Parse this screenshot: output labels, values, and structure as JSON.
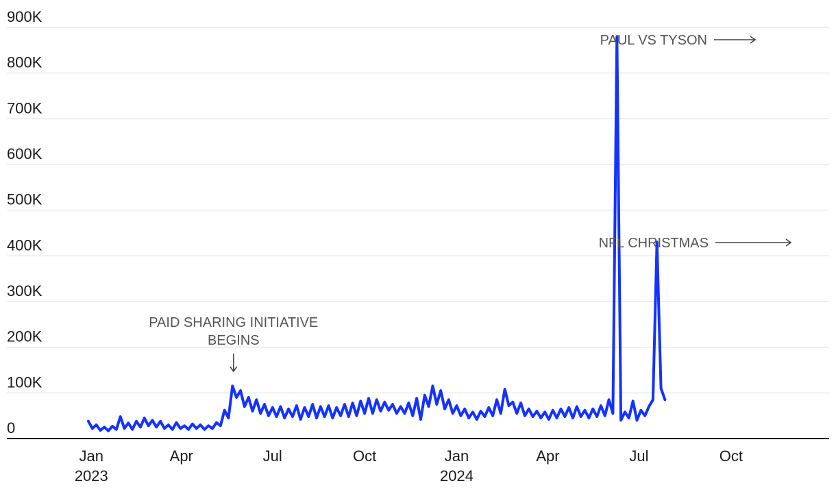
{
  "chart_data": {
    "type": "line",
    "title": "",
    "xlabel": "",
    "ylabel": "",
    "ylim": [
      0,
      900000
    ],
    "xlim": [
      "2022-12-01",
      "2025-01-07"
    ],
    "grid": "horizontal",
    "colors": {
      "line": "#1432ff",
      "grid": "#dcdcdc",
      "axis": "#111111",
      "annotation": "#555555"
    },
    "y_ticks": [
      {
        "value": 0,
        "label": "0"
      },
      {
        "value": 100000,
        "label": "100K"
      },
      {
        "value": 200000,
        "label": "200K"
      },
      {
        "value": 300000,
        "label": "300K"
      },
      {
        "value": 400000,
        "label": "400K"
      },
      {
        "value": 500000,
        "label": "500K"
      },
      {
        "value": 600000,
        "label": "600K"
      },
      {
        "value": 700000,
        "label": "700K"
      },
      {
        "value": 800000,
        "label": "800K"
      },
      {
        "value": 900000,
        "label": "900K"
      }
    ],
    "x_ticks": [
      {
        "date": "2023-01-01",
        "label": "Jan",
        "sublabel": "2023"
      },
      {
        "date": "2023-04-01",
        "label": "Apr",
        "sublabel": ""
      },
      {
        "date": "2023-07-01",
        "label": "Jul",
        "sublabel": ""
      },
      {
        "date": "2023-10-01",
        "label": "Oct",
        "sublabel": ""
      },
      {
        "date": "2024-01-01",
        "label": "Jan",
        "sublabel": "2024"
      },
      {
        "date": "2024-04-01",
        "label": "Apr",
        "sublabel": ""
      },
      {
        "date": "2024-07-01",
        "label": "Jul",
        "sublabel": ""
      },
      {
        "date": "2024-10-01",
        "label": "Oct",
        "sublabel": ""
      }
    ],
    "annotations": [
      {
        "text": "PAID SHARING INITIATIVE",
        "text2": "BEGINS",
        "date": "2023-05-23",
        "arrow": "down"
      },
      {
        "text": "PAUL VS TYSON",
        "date": "2024-11-15",
        "value": 880000,
        "arrow": "right"
      },
      {
        "text": "NFL CHRISTMAS",
        "date": "2024-12-25",
        "value": 430000,
        "arrow": "right"
      }
    ],
    "series": [
      {
        "values_start": "2022-12-29",
        "values_step_days": 4,
        "values": [
          38000,
          22000,
          30000,
          18000,
          25000,
          17000,
          27000,
          20000,
          48000,
          22000,
          34000,
          20000,
          38000,
          25000,
          45000,
          28000,
          40000,
          25000,
          38000,
          22000,
          30000,
          20000,
          35000,
          22000,
          28000,
          20000,
          32000,
          22000,
          30000,
          20000,
          28000,
          22000,
          35000,
          28000,
          62000,
          45000,
          115000,
          90000,
          105000,
          70000,
          90000,
          60000,
          85000,
          55000,
          75000,
          50000,
          68000,
          48000,
          70000,
          45000,
          65000,
          48000,
          72000,
          42000,
          68000,
          48000,
          75000,
          45000,
          70000,
          48000,
          72000,
          45000,
          68000,
          50000,
          75000,
          48000,
          78000,
          50000,
          82000,
          55000,
          88000,
          55000,
          85000,
          60000,
          80000,
          62000,
          75000,
          55000,
          70000,
          55000,
          78000,
          50000,
          88000,
          42000,
          95000,
          70000,
          115000,
          75000,
          105000,
          65000,
          85000,
          55000,
          72000,
          50000,
          65000,
          45000,
          58000,
          42000,
          60000,
          48000,
          68000,
          50000,
          85000,
          55000,
          108000,
          72000,
          80000,
          55000,
          78000,
          50000,
          65000,
          48000,
          60000,
          45000,
          58000,
          42000,
          62000,
          45000,
          65000,
          48000,
          68000,
          45000,
          70000,
          48000,
          62000,
          45000,
          65000,
          48000,
          72000,
          50000,
          85000,
          55000,
          880000,
          40000,
          58000,
          45000,
          82000,
          40000,
          62000,
          50000,
          70000,
          85000,
          430000,
          110000,
          85000
        ]
      }
    ]
  }
}
